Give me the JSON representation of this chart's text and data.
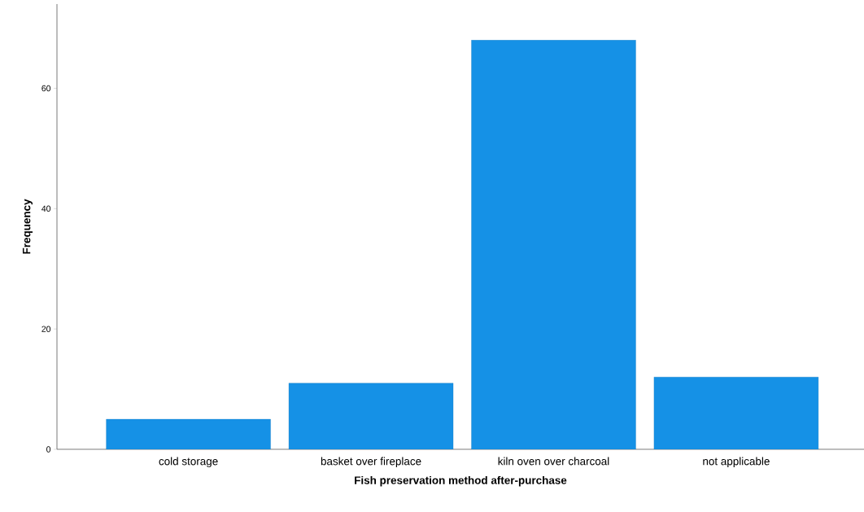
{
  "chart_data": {
    "type": "bar",
    "xlabel": "Fish preservation method after-purchase",
    "ylabel": "Frequency",
    "categories": [
      "cold storage",
      "basket over fireplace",
      "kiln oven over charcoal",
      "not applicable"
    ],
    "values": [
      5,
      11,
      68,
      12
    ],
    "color": "#1591e6",
    "ylim": [
      0,
      74
    ],
    "yticks": [
      0,
      20,
      40,
      60
    ],
    "grid": false
  }
}
